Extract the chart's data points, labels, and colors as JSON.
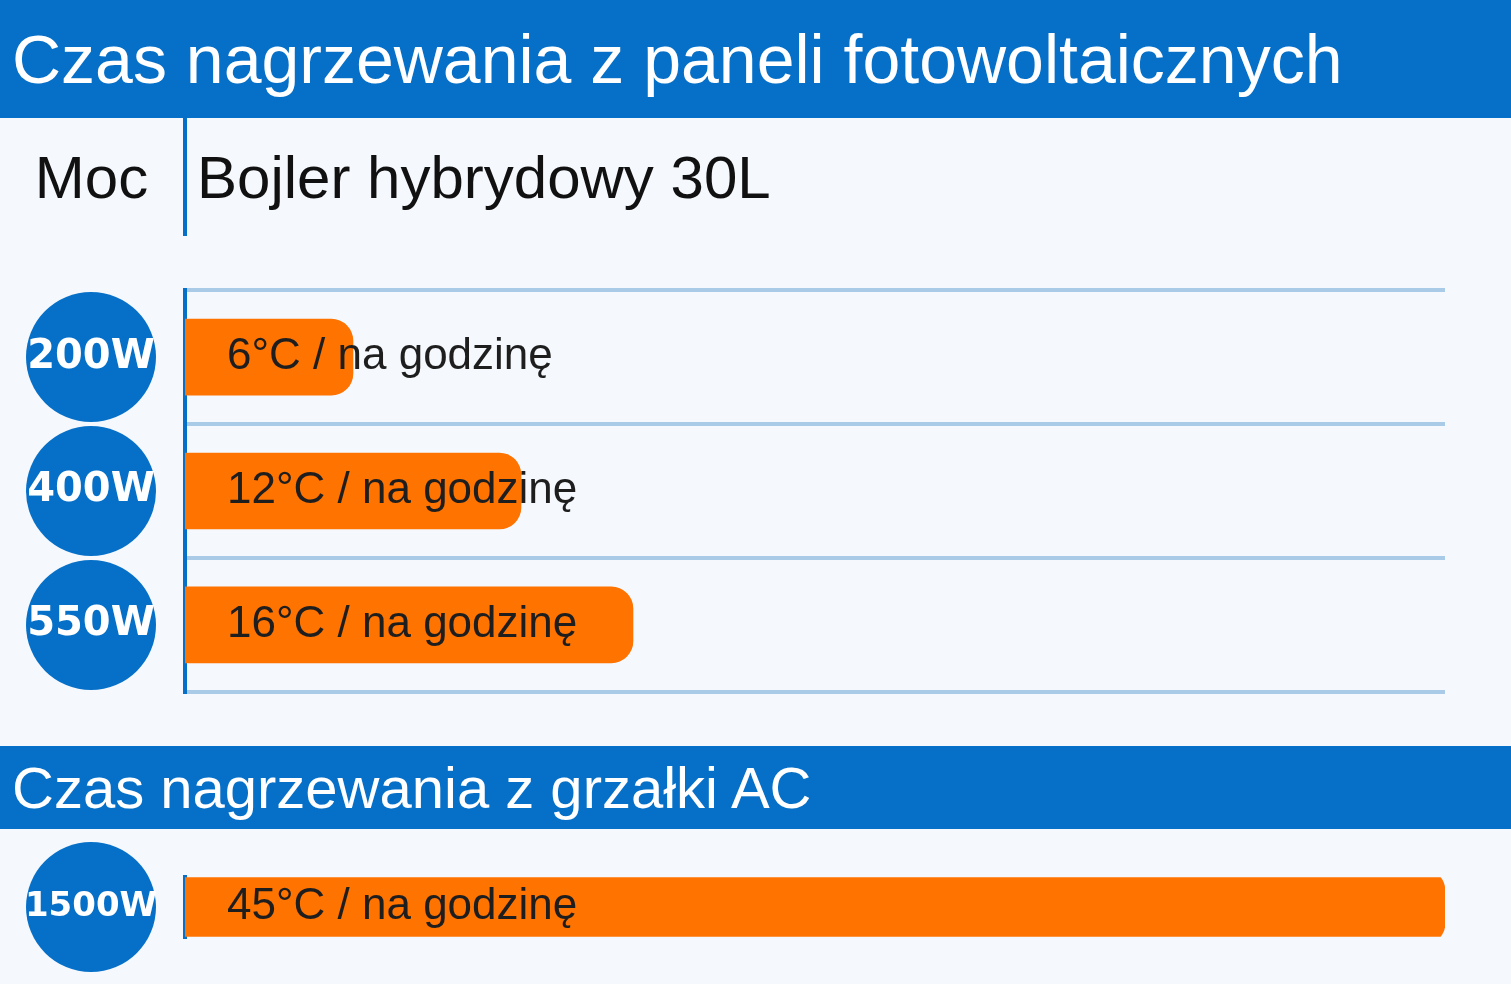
{
  "chart_data": [
    {
      "type": "bar",
      "orientation": "horizontal",
      "title": "Czas nagrzewania z paneli fotowoltaicznych",
      "ylabel": "Moc",
      "xlabel": "Bojler hybrydowy 30L",
      "categories": [
        "200W",
        "400W",
        "550W"
      ],
      "values": [
        6,
        12,
        16
      ],
      "color": "#ff7300",
      "value_labels": [
        "6°C / na godzinę",
        "12°C / na godzinę",
        "16°C / na godzinę"
      ],
      "grid": "y",
      "tick_labels": "y"
    },
    {
      "type": "bar",
      "orientation": "horizontal",
      "title": "Czas nagrzewania z grzałki AC",
      "categories": [
        "1500W"
      ],
      "values": [
        45
      ],
      "color": "#ff7300",
      "value_labels": [
        "45°C / na godzinę"
      ],
      "grid": false,
      "tick_labels": "y"
    }
  ]
}
